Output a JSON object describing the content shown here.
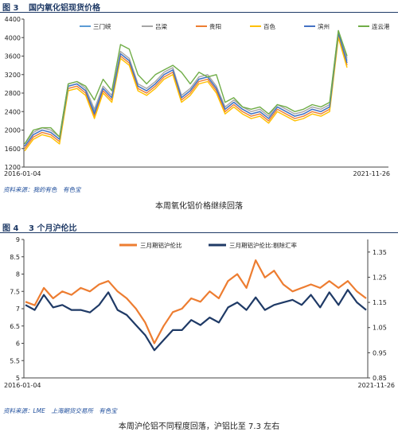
{
  "figure1": {
    "label": "图 3",
    "title": "国内氧化铝现货价格",
    "source": "资料来源：我的有色　有色宝",
    "caption": "本周氧化铝价格继续回落",
    "chart_data": {
      "type": "line",
      "x_start": "2016-01-04",
      "x_end": "2021-11-26",
      "xticks": [
        "2016-01-04",
        "2021-11-26"
      ],
      "ylim": [
        1200,
        4400
      ],
      "yticks": [
        1200,
        1600,
        2000,
        2400,
        2800,
        3200,
        3600,
        4000,
        4400
      ],
      "legend_position": "top-right",
      "series": [
        {
          "name": "三门峡",
          "color": "#5b9bd5",
          "values": [
            1650,
            1900,
            2000,
            1950,
            1800,
            2950,
            3000,
            2850,
            2400,
            2900,
            2700,
            3650,
            3500,
            2950,
            2850,
            3000,
            3200,
            3300,
            2700,
            2850,
            3100,
            3150,
            2900,
            2450,
            2600,
            2450,
            2350,
            2400,
            2250,
            2500,
            2400,
            2300,
            2350,
            2450,
            2400,
            2500,
            4100,
            3500
          ]
        },
        {
          "name": "吕梁",
          "color": "#a5a5a5",
          "values": [
            1700,
            1950,
            2050,
            2000,
            1850,
            3000,
            3050,
            2900,
            2450,
            2950,
            2750,
            3700,
            3550,
            3000,
            2900,
            3050,
            3250,
            3350,
            2750,
            2900,
            3150,
            3200,
            2950,
            2500,
            2650,
            2500,
            2400,
            2450,
            2300,
            2550,
            2450,
            2350,
            2400,
            2500,
            2450,
            2550,
            4150,
            3550
          ]
        },
        {
          "name": "贵阳",
          "color": "#ed7d31",
          "values": [
            1600,
            1850,
            1950,
            1900,
            1750,
            2900,
            2950,
            2800,
            2300,
            2850,
            2650,
            3600,
            3450,
            2900,
            2800,
            2950,
            3150,
            3250,
            2650,
            2800,
            3050,
            3100,
            2850,
            2400,
            2550,
            2400,
            2300,
            2350,
            2200,
            2450,
            2350,
            2250,
            2300,
            2400,
            2350,
            2450,
            4050,
            3400
          ]
        },
        {
          "name": "百色",
          "color": "#ffc000",
          "values": [
            1550,
            1800,
            1900,
            1850,
            1700,
            2850,
            2900,
            2750,
            2250,
            2800,
            2600,
            3550,
            3400,
            2850,
            2750,
            2900,
            3100,
            3200,
            2600,
            2750,
            3000,
            3050,
            2800,
            2350,
            2500,
            2350,
            2250,
            2300,
            2150,
            2400,
            2300,
            2200,
            2250,
            2350,
            2300,
            2400,
            4000,
            3350
          ]
        },
        {
          "name": "滨州",
          "color": "#4472c4",
          "values": [
            1650,
            1900,
            2000,
            1950,
            1800,
            2950,
            3000,
            2850,
            2350,
            2900,
            2700,
            3650,
            3500,
            2950,
            2850,
            3000,
            3200,
            3300,
            2700,
            2850,
            3100,
            3150,
            2900,
            2450,
            2600,
            2450,
            2350,
            2400,
            2250,
            2500,
            2400,
            2300,
            2350,
            2450,
            2400,
            2500,
            4100,
            3450
          ]
        },
        {
          "name": "连云港",
          "color": "#70ad47",
          "values": [
            1700,
            2000,
            2050,
            2050,
            1850,
            3000,
            3050,
            2950,
            2650,
            3100,
            2850,
            3850,
            3750,
            3200,
            3000,
            3200,
            3300,
            3400,
            3250,
            3000,
            3250,
            3150,
            3200,
            2600,
            2700,
            2500,
            2450,
            2500,
            2350,
            2550,
            2500,
            2400,
            2450,
            2550,
            2500,
            2600,
            4150,
            3600
          ]
        }
      ]
    }
  },
  "figure2": {
    "label": "图 4",
    "title": "3 个月沪伦比",
    "source": "资料来源：LME　上海期货交易所　有色宝",
    "caption": "本周沪伦铝不同程度回落，沪铝比至 7.3 左右",
    "chart_data": {
      "type": "line",
      "x_start": "2016-01-04",
      "x_end": "2021-11-26",
      "xticks": [
        "2016-01-04",
        "2021-11-26"
      ],
      "ylim": [
        5,
        9
      ],
      "yticks": [
        5,
        5.5,
        6,
        6.5,
        7,
        7.5,
        8,
        8.5,
        9
      ],
      "y2lim": [
        0.85,
        1.4
      ],
      "y2ticks": [
        0.85,
        0.95,
        1.05,
        1.15,
        1.25,
        1.35
      ],
      "legend_position": "top",
      "series": [
        {
          "name": "三月期铝沪伦比",
          "color": "#ed7d31",
          "axis": "left",
          "values": [
            7.2,
            7.1,
            7.6,
            7.3,
            7.5,
            7.4,
            7.6,
            7.5,
            7.7,
            7.8,
            7.5,
            7.3,
            7.0,
            6.6,
            6.0,
            6.5,
            6.9,
            7.0,
            7.3,
            7.2,
            7.5,
            7.3,
            7.8,
            8.0,
            7.6,
            8.4,
            7.9,
            8.1,
            7.7,
            7.5,
            7.6,
            7.7,
            7.6,
            7.8,
            7.6,
            7.8,
            7.5,
            7.3
          ]
        },
        {
          "name": "三月期铝沪伦比:剔除汇率",
          "color": "#1f3a66",
          "axis": "right",
          "values": [
            1.14,
            1.12,
            1.18,
            1.13,
            1.14,
            1.12,
            1.12,
            1.11,
            1.14,
            1.19,
            1.12,
            1.1,
            1.06,
            1.02,
            0.96,
            1.0,
            1.04,
            1.04,
            1.08,
            1.06,
            1.09,
            1.07,
            1.13,
            1.15,
            1.12,
            1.17,
            1.12,
            1.14,
            1.15,
            1.16,
            1.14,
            1.18,
            1.13,
            1.19,
            1.14,
            1.2,
            1.15,
            1.12
          ]
        }
      ]
    }
  }
}
